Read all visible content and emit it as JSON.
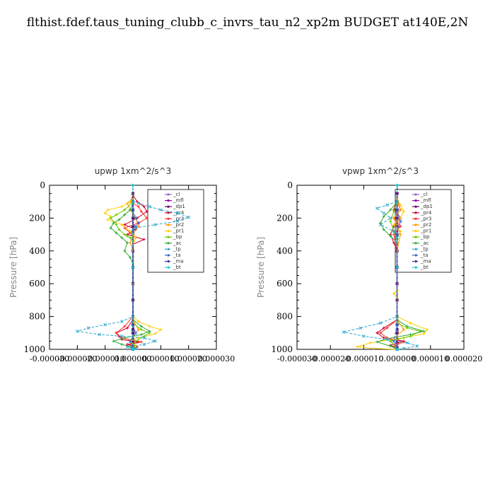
{
  "title": "flthist.fdef.taus_tuning_clubb_c_invrs_tau_n2_xp2m  BUDGET at140E,2N",
  "chart_data": [
    {
      "type": "line",
      "title": "upwp   1xm^2/s^3",
      "ylabel": "Pressure [hPa]",
      "ylim": [
        1000,
        0
      ],
      "xlim": [
        -3e-05,
        3e-05
      ],
      "xticks": [
        "-0.000030",
        "-0.000020",
        "-0.000010",
        "0.000000",
        "0.000010",
        "0.000020",
        "0.000030"
      ],
      "xtick_values": [
        -3e-05,
        -2e-05,
        -1e-05,
        0,
        1e-05,
        2e-05,
        3e-05
      ],
      "yticks": [
        0,
        200,
        400,
        600,
        800,
        1000
      ],
      "legend_position": "right",
      "series": [
        {
          "name": "_cl",
          "color": "#9966cc",
          "x": [
            0,
            0,
            0,
            0,
            0,
            0,
            0,
            0,
            0,
            0,
            0,
            0,
            0,
            0,
            0,
            0,
            0
          ],
          "y": [
            50,
            100,
            150,
            200,
            250,
            300,
            400,
            500,
            600,
            700,
            800,
            850,
            880,
            900,
            940,
            960,
            990
          ]
        },
        {
          "name": "_mfl",
          "color": "#990099",
          "x": [
            0,
            0,
            0,
            0,
            0,
            0,
            0,
            0,
            0,
            0,
            0,
            0,
            0,
            0,
            0,
            0,
            0
          ],
          "y": [
            50,
            100,
            150,
            200,
            250,
            300,
            400,
            500,
            600,
            700,
            800,
            850,
            880,
            900,
            940,
            960,
            990
          ]
        },
        {
          "name": "_dp1",
          "color": "#660066",
          "x": [
            0,
            0,
            0,
            0,
            0,
            0,
            0,
            0,
            0,
            0,
            0,
            0,
            0,
            0,
            0,
            0,
            0
          ],
          "y": [
            50,
            100,
            150,
            200,
            250,
            300,
            400,
            500,
            600,
            700,
            800,
            850,
            880,
            900,
            940,
            960,
            990
          ]
        },
        {
          "name": "_pr4",
          "color": "#cc0033",
          "x": [
            0,
            1.5e-06,
            4e-06,
            5e-06,
            1.5e-06,
            -3e-06,
            1e-06,
            -2e-06,
            4e-06,
            0,
            0,
            -2e-06,
            -6e-06,
            -5e-06,
            -4e-06,
            2e-06,
            -2e-06,
            1.5e-06,
            0
          ],
          "y": [
            60,
            100,
            130,
            160,
            200,
            240,
            270,
            300,
            330,
            360,
            820,
            870,
            900,
            920,
            940,
            955,
            970,
            985,
            1000
          ]
        },
        {
          "name": "_pr3",
          "color": "#ff3333",
          "x": [
            0,
            -1e-06,
            2e-06,
            3e-06,
            5e-06,
            2e-06,
            -3e-06,
            -1e-06,
            1e-06,
            0,
            0,
            -3e-06,
            -6e-06,
            -4e-06,
            3e-06,
            -2e-06,
            0
          ],
          "y": [
            60,
            100,
            130,
            160,
            200,
            230,
            260,
            290,
            320,
            360,
            800,
            860,
            900,
            930,
            955,
            975,
            1000
          ]
        },
        {
          "name": "_pr2",
          "color": "#ff9900",
          "x": [
            0,
            -2e-06,
            -1e-06,
            1e-06,
            2e-06,
            0,
            -1e-06,
            0,
            0,
            2e-06,
            -1e-06,
            0
          ],
          "y": [
            80,
            110,
            150,
            200,
            250,
            300,
            350,
            400,
            820,
            880,
            950,
            1000
          ]
        },
        {
          "name": "_pr1",
          "color": "#ffcc00",
          "x": [
            0,
            -1e-06,
            -4e-06,
            -9e-06,
            -1e-05,
            -8e-06,
            -9e-06,
            -4e-06,
            -1e-06,
            1e-06,
            0,
            0,
            0,
            2e-06,
            6e-06,
            1e-05,
            8e-06,
            2e-06,
            -1e-06,
            1e-06,
            0
          ],
          "y": [
            80,
            100,
            130,
            150,
            170,
            190,
            210,
            240,
            280,
            320,
            360,
            600,
            800,
            830,
            860,
            880,
            905,
            930,
            950,
            980,
            1000
          ]
        },
        {
          "name": "_bp",
          "color": "#66cc00",
          "x": [
            0,
            -3e-06,
            -6e-06,
            -8e-06,
            -6e-06,
            -5e-06,
            -3e-06,
            -2e-06,
            -1e-06,
            0,
            0,
            3e-06,
            6e-06,
            4e-06,
            1e-06,
            0
          ],
          "y": [
            100,
            150,
            180,
            200,
            240,
            270,
            300,
            310,
            320,
            340,
            840,
            880,
            900,
            920,
            950,
            1000
          ]
        },
        {
          "name": "_ac",
          "color": "#33aa33",
          "x": [
            0,
            0,
            -1e-06,
            -3e-06,
            -5e-06,
            -7e-06,
            -8e-06,
            -6e-06,
            -4e-06,
            -2e-06,
            -3e-06,
            -1e-06,
            0,
            0,
            3e-06,
            6e-06,
            3e-06,
            -3e-06,
            -7e-06,
            -4e-06,
            -1e-06,
            0
          ],
          "y": [
            50,
            100,
            150,
            180,
            210,
            230,
            260,
            290,
            320,
            350,
            400,
            440,
            480,
            820,
            860,
            890,
            910,
            930,
            950,
            970,
            985,
            1000
          ]
        },
        {
          "name": "_tp",
          "color": "#33aacc",
          "x": [
            0,
            2e-06,
            6e-06,
            1e-05,
            1.6e-05,
            2e-05,
            1.6e-05,
            8e-06,
            1e-06,
            0,
            0,
            -4e-06,
            -1e-05,
            -1.6e-05,
            -2e-05,
            -1.2e-05,
            -4e-06,
            4e-06,
            8e-06,
            4e-06,
            -2e-06,
            1e-06,
            0
          ],
          "y": [
            100,
            110,
            130,
            150,
            170,
            195,
            220,
            240,
            260,
            280,
            800,
            830,
            850,
            870,
            890,
            910,
            920,
            930,
            950,
            970,
            985,
            995,
            1000
          ]
        },
        {
          "name": "_ta",
          "color": "#3366cc",
          "x": [
            0,
            1e-06,
            2e-06,
            1e-06,
            0,
            0,
            1e-06,
            -1e-06,
            0
          ],
          "y": [
            150,
            200,
            230,
            250,
            280,
            850,
            900,
            950,
            1000
          ]
        },
        {
          "name": "_ma",
          "color": "#333399",
          "x": [
            0,
            0,
            0
          ],
          "y": [
            0,
            500,
            1000
          ]
        },
        {
          "name": "_bt",
          "color": "#00cccc",
          "x": [
            0,
            0,
            0
          ],
          "y": [
            0,
            500,
            1000
          ]
        }
      ]
    },
    {
      "type": "line",
      "title": "vpwp   1xm^2/s^3",
      "ylabel": "Pressure [hPa]",
      "ylim": [
        1000,
        0
      ],
      "xlim": [
        -3e-05,
        2e-05
      ],
      "xticks": [
        "-0.000030",
        "-0.000020",
        "-0.000010",
        "0.000000",
        "0.000010",
        "0.000020"
      ],
      "xtick_values": [
        -3e-05,
        -2e-05,
        -1e-05,
        0,
        1e-05,
        2e-05
      ],
      "yticks": [
        0,
        200,
        400,
        600,
        800,
        1000
      ],
      "legend_position": "right",
      "series": [
        {
          "name": "_cl",
          "color": "#9966cc",
          "x": [
            0,
            0,
            0,
            0,
            0,
            0,
            0,
            0,
            0,
            0,
            0,
            0,
            0,
            0,
            0,
            0,
            0
          ],
          "y": [
            50,
            100,
            150,
            200,
            250,
            300,
            400,
            500,
            600,
            700,
            800,
            850,
            880,
            900,
            940,
            960,
            990
          ]
        },
        {
          "name": "_mfl",
          "color": "#990099",
          "x": [
            0,
            0,
            0,
            0,
            0,
            0,
            0,
            0,
            0,
            0,
            0,
            0,
            0,
            0,
            0,
            0,
            0
          ],
          "y": [
            50,
            100,
            150,
            200,
            250,
            300,
            400,
            500,
            600,
            700,
            800,
            850,
            880,
            900,
            940,
            960,
            990
          ]
        },
        {
          "name": "_dp1",
          "color": "#660066",
          "x": [
            0,
            0,
            0,
            0,
            0,
            0,
            0,
            0,
            0,
            0,
            0,
            0,
            0,
            0,
            0,
            0,
            0
          ],
          "y": [
            50,
            100,
            150,
            200,
            250,
            300,
            400,
            500,
            600,
            700,
            800,
            850,
            880,
            900,
            940,
            960,
            990
          ]
        },
        {
          "name": "_pr4",
          "color": "#cc0033",
          "x": [
            0,
            -1e-06,
            1e-06,
            -1e-06,
            -2e-06,
            -1e-06,
            0,
            0,
            -4e-06,
            -6e-06,
            -4e-06,
            2e-06,
            -2e-06,
            0
          ],
          "y": [
            80,
            150,
            200,
            250,
            300,
            350,
            400,
            820,
            870,
            900,
            930,
            950,
            975,
            1000
          ]
        },
        {
          "name": "_pr3",
          "color": "#ff3333",
          "x": [
            0,
            1e-06,
            -1e-06,
            1e-06,
            -1e-06,
            0,
            0,
            -3e-06,
            -5e-06,
            -3e-06,
            2e-06,
            -1e-06,
            0
          ],
          "y": [
            80,
            150,
            200,
            250,
            300,
            400,
            820,
            870,
            900,
            930,
            955,
            980,
            1000
          ]
        },
        {
          "name": "_pr2",
          "color": "#ff9900",
          "x": [
            0,
            1e-06,
            -1e-06,
            1e-06,
            0,
            0,
            2e-06,
            -2e-06,
            0
          ],
          "y": [
            100,
            150,
            200,
            300,
            400,
            820,
            880,
            950,
            1000
          ]
        },
        {
          "name": "_pr1",
          "color": "#ffcc00",
          "x": [
            0,
            1e-06,
            2e-06,
            1e-06,
            -1e-06,
            1e-06,
            0,
            0,
            -1e-06,
            0,
            0,
            4e-06,
            9e-06,
            8e-06,
            2e-06,
            -8e-06,
            -1.2e-05,
            -7e-06,
            0
          ],
          "y": [
            80,
            120,
            160,
            200,
            240,
            280,
            330,
            640,
            660,
            690,
            800,
            840,
            880,
            905,
            930,
            960,
            985,
            995,
            1000
          ]
        },
        {
          "name": "_bp",
          "color": "#66cc00",
          "x": [
            0,
            -1e-06,
            -2e-06,
            -1e-06,
            0,
            0,
            3e-06,
            7e-06,
            4e-06,
            -2e-06,
            0
          ],
          "y": [
            100,
            160,
            220,
            280,
            330,
            840,
            870,
            890,
            920,
            950,
            1000
          ]
        },
        {
          "name": "_ac",
          "color": "#33aa33",
          "x": [
            0,
            -2e-06,
            -4e-06,
            -5e-06,
            -4e-06,
            -2e-06,
            0,
            0,
            3e-06,
            8e-06,
            4e-06,
            -3e-06,
            -6e-06,
            -2e-06,
            0
          ],
          "y": [
            100,
            150,
            190,
            230,
            270,
            310,
            350,
            820,
            860,
            890,
            910,
            935,
            955,
            980,
            1000
          ]
        },
        {
          "name": "_tp",
          "color": "#33aacc",
          "x": [
            0,
            -3e-06,
            -6e-06,
            -4e-06,
            -2e-06,
            -5e-06,
            -1e-06,
            0,
            0,
            -5e-06,
            -1.1e-05,
            -1.6e-05,
            -1e-05,
            -3e-06,
            3e-06,
            6e-06,
            2e-06,
            0
          ],
          "y": [
            100,
            120,
            140,
            170,
            200,
            240,
            280,
            320,
            800,
            840,
            870,
            895,
            920,
            940,
            960,
            980,
            995,
            1000
          ]
        },
        {
          "name": "_ta",
          "color": "#3366cc",
          "x": [
            0,
            1e-06,
            0,
            0,
            -1e-06,
            0
          ],
          "y": [
            150,
            220,
            300,
            850,
            950,
            1000
          ]
        },
        {
          "name": "_ma",
          "color": "#333399",
          "x": [
            0,
            0,
            0
          ],
          "y": [
            0,
            500,
            1000
          ]
        },
        {
          "name": "_bt",
          "color": "#00cccc",
          "x": [
            0,
            0,
            0
          ],
          "y": [
            0,
            500,
            1000
          ]
        }
      ]
    }
  ]
}
